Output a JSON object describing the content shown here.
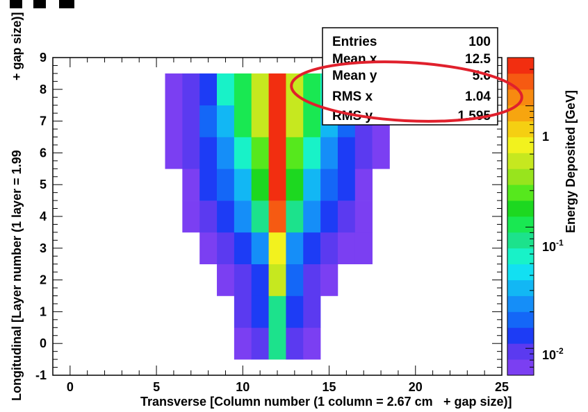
{
  "chart_data": {
    "type": "heatmap",
    "xlabel": "Transverse [Column number (1 column = 2.67 cm",
    "xlabel_suffix": "+ gap size)]",
    "ylabel": "Longitudinal [Layer number (1 layer = 1.99",
    "ylabel_suffix": "+ gap size)]",
    "colorbar_label": "Energy Deposited [GeV]",
    "xlim": [
      -1,
      25
    ],
    "ylim": [
      -1,
      9
    ],
    "x_ticks": [
      "0",
      "5",
      "10",
      "15",
      "20",
      "25"
    ],
    "y_ticks": [
      "-1",
      "0",
      "1",
      "2",
      "3",
      "4",
      "5",
      "6",
      "7",
      "8",
      "9"
    ],
    "colorbar_ticks": [
      "1",
      "10^-1",
      "10^-2"
    ],
    "color_scale": "log",
    "color_range": [
      0.006,
      2.5
    ],
    "palette": [
      "#7b3ff2",
      "#5b3af0",
      "#1d3cf5",
      "#1467f7",
      "#158ef8",
      "#12b7f4",
      "#12e0f2",
      "#18f2c8",
      "#1ce28c",
      "#19e852",
      "#1dd820",
      "#56e81d",
      "#98e41d",
      "#c6e81f",
      "#f2f21e",
      "#f5cf12",
      "#f7a50f",
      "#f78a10",
      "#f65a12",
      "#f22e10"
    ],
    "cells": [
      {
        "x": 10,
        "y": 0,
        "v": 0.008
      },
      {
        "x": 11,
        "y": 0,
        "v": 0.01
      },
      {
        "x": 12,
        "y": 0,
        "v": 0.09
      },
      {
        "x": 13,
        "y": 0,
        "v": 0.01
      },
      {
        "x": 14,
        "y": 0,
        "v": 0.008
      },
      {
        "x": 10,
        "y": 1,
        "v": 0.009
      },
      {
        "x": 11,
        "y": 1,
        "v": 0.012
      },
      {
        "x": 12,
        "y": 1,
        "v": 0.07
      },
      {
        "x": 13,
        "y": 1,
        "v": 0.012
      },
      {
        "x": 14,
        "y": 1,
        "v": 0.009
      },
      {
        "x": 9,
        "y": 2,
        "v": 0.008
      },
      {
        "x": 10,
        "y": 2,
        "v": 0.01
      },
      {
        "x": 11,
        "y": 2,
        "v": 0.014
      },
      {
        "x": 12,
        "y": 2,
        "v": 0.35
      },
      {
        "x": 13,
        "y": 2,
        "v": 0.015
      },
      {
        "x": 14,
        "y": 2,
        "v": 0.01
      },
      {
        "x": 15,
        "y": 2,
        "v": 0.008
      },
      {
        "x": 8,
        "y": 3,
        "v": 0.007
      },
      {
        "x": 9,
        "y": 3,
        "v": 0.009
      },
      {
        "x": 10,
        "y": 3,
        "v": 0.013
      },
      {
        "x": 11,
        "y": 3,
        "v": 0.025
      },
      {
        "x": 12,
        "y": 3,
        "v": 0.5
      },
      {
        "x": 13,
        "y": 3,
        "v": 0.025
      },
      {
        "x": 14,
        "y": 3,
        "v": 0.013
      },
      {
        "x": 15,
        "y": 3,
        "v": 0.009
      },
      {
        "x": 16,
        "y": 3,
        "v": 0.007
      },
      {
        "x": 17,
        "y": 3,
        "v": 0.007
      },
      {
        "x": 7,
        "y": 4,
        "v": 0.007
      },
      {
        "x": 8,
        "y": 4,
        "v": 0.009
      },
      {
        "x": 9,
        "y": 4,
        "v": 0.014
      },
      {
        "x": 10,
        "y": 4,
        "v": 0.022
      },
      {
        "x": 11,
        "y": 4,
        "v": 0.08
      },
      {
        "x": 12,
        "y": 4,
        "v": 1.5
      },
      {
        "x": 13,
        "y": 4,
        "v": 0.08
      },
      {
        "x": 14,
        "y": 4,
        "v": 0.022
      },
      {
        "x": 15,
        "y": 4,
        "v": 0.014
      },
      {
        "x": 16,
        "y": 4,
        "v": 0.009
      },
      {
        "x": 17,
        "y": 4,
        "v": 0.007
      },
      {
        "x": 7,
        "y": 5,
        "v": 0.008
      },
      {
        "x": 8,
        "y": 5,
        "v": 0.011
      },
      {
        "x": 9,
        "y": 5,
        "v": 0.02
      },
      {
        "x": 10,
        "y": 5,
        "v": 0.03
      },
      {
        "x": 11,
        "y": 5,
        "v": 0.15
      },
      {
        "x": 12,
        "y": 5,
        "v": 2.0
      },
      {
        "x": 13,
        "y": 5,
        "v": 0.15
      },
      {
        "x": 14,
        "y": 5,
        "v": 0.03
      },
      {
        "x": 15,
        "y": 5,
        "v": 0.02
      },
      {
        "x": 16,
        "y": 5,
        "v": 0.011
      },
      {
        "x": 17,
        "y": 5,
        "v": 0.007
      },
      {
        "x": 6,
        "y": 6,
        "v": 0.007
      },
      {
        "x": 7,
        "y": 6,
        "v": 0.01
      },
      {
        "x": 8,
        "y": 6,
        "v": 0.014
      },
      {
        "x": 9,
        "y": 6,
        "v": 0.025
      },
      {
        "x": 10,
        "y": 6,
        "v": 0.05
      },
      {
        "x": 11,
        "y": 6,
        "v": 0.22
      },
      {
        "x": 12,
        "y": 6,
        "v": 2.0
      },
      {
        "x": 13,
        "y": 6,
        "v": 0.22
      },
      {
        "x": 14,
        "y": 6,
        "v": 0.05
      },
      {
        "x": 15,
        "y": 6,
        "v": 0.025
      },
      {
        "x": 16,
        "y": 6,
        "v": 0.014
      },
      {
        "x": 17,
        "y": 6,
        "v": 0.01
      },
      {
        "x": 18,
        "y": 6,
        "v": 0.007
      },
      {
        "x": 6,
        "y": 7,
        "v": 0.007
      },
      {
        "x": 7,
        "y": 7,
        "v": 0.01
      },
      {
        "x": 8,
        "y": 7,
        "v": 0.015
      },
      {
        "x": 9,
        "y": 7,
        "v": 0.03
      },
      {
        "x": 10,
        "y": 7,
        "v": 0.1
      },
      {
        "x": 11,
        "y": 7,
        "v": 0.4
      },
      {
        "x": 12,
        "y": 7,
        "v": 2.0
      },
      {
        "x": 13,
        "y": 7,
        "v": 0.4
      },
      {
        "x": 14,
        "y": 7,
        "v": 0.1
      },
      {
        "x": 15,
        "y": 7,
        "v": 0.03
      },
      {
        "x": 16,
        "y": 7,
        "v": 0.015
      },
      {
        "x": 17,
        "y": 7,
        "v": 0.01
      },
      {
        "x": 18,
        "y": 7,
        "v": 0.007
      },
      {
        "x": 6,
        "y": 8,
        "v": 0.007
      },
      {
        "x": 7,
        "y": 8,
        "v": 0.01
      },
      {
        "x": 8,
        "y": 8,
        "v": 0.013
      },
      {
        "x": 9,
        "y": 8,
        "v": 0.05
      },
      {
        "x": 10,
        "y": 8,
        "v": 0.1
      },
      {
        "x": 11,
        "y": 8,
        "v": 0.35
      },
      {
        "x": 12,
        "y": 8,
        "v": 2.0
      },
      {
        "x": 13,
        "y": 8,
        "v": 0.35
      },
      {
        "x": 14,
        "y": 8,
        "v": 0.1
      },
      {
        "x": 15,
        "y": 8,
        "v": 0.05
      },
      {
        "x": 16,
        "y": 8,
        "v": 0.013
      },
      {
        "x": 17,
        "y": 8,
        "v": 0.01
      },
      {
        "x": 18,
        "y": 8,
        "v": 0.007
      }
    ],
    "stats_box": {
      "rows": [
        {
          "label": "Entries",
          "value": "100"
        },
        {
          "label": "Mean x",
          "value": "12.5"
        },
        {
          "label": "Mean y",
          "value": "5.6"
        },
        {
          "label": "RMS x",
          "value": "1.04"
        },
        {
          "label": "RMS y",
          "value": "1.595"
        }
      ]
    },
    "annotation": {
      "shape": "ellipse",
      "color": "#e0202c",
      "highlights": [
        "Mean y",
        "RMS x"
      ]
    }
  }
}
